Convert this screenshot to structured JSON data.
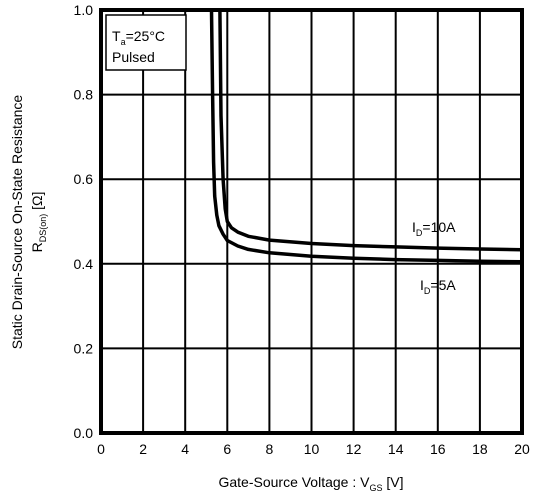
{
  "chart_data": {
    "type": "line",
    "xlabel": {
      "main": "Gate-Source Voltage : V",
      "sub": "GS",
      "unit": " [V]"
    },
    "ylabel": {
      "line1": "Static Drain-Source On-State Resistance",
      "main": "R",
      "sub": "DS(on)",
      "unit": " [Ω]"
    },
    "xlim": [
      0,
      20
    ],
    "ylim": [
      0.0,
      1.0
    ],
    "x_ticks": [
      "0",
      "2",
      "4",
      "6",
      "8",
      "10",
      "12",
      "14",
      "16",
      "18",
      "20"
    ],
    "y_ticks": [
      "0.0",
      "0.2",
      "0.4",
      "0.6",
      "0.8",
      "1.0"
    ],
    "grid": true,
    "conditions": {
      "ta_main": "T",
      "ta_sub": "a",
      "ta_rest": "=25°C",
      "pulsed": "Pulsed"
    },
    "series": [
      {
        "name_main": "I",
        "name_sub": "D",
        "name_rest": "=10A",
        "x": [
          5.65,
          5.7,
          5.8,
          5.9,
          6.0,
          6.2,
          6.5,
          7.0,
          8.0,
          10.0,
          12.0,
          14.0,
          16.0,
          18.0,
          20.0
        ],
        "y": [
          1.0,
          0.75,
          0.6,
          0.53,
          0.5,
          0.485,
          0.475,
          0.465,
          0.456,
          0.448,
          0.443,
          0.44,
          0.437,
          0.435,
          0.433
        ]
      },
      {
        "name_main": "I",
        "name_sub": "D",
        "name_rest": "=5A",
        "x": [
          5.25,
          5.3,
          5.35,
          5.4,
          5.5,
          5.6,
          5.8,
          6.0,
          6.5,
          7.0,
          8.0,
          10.0,
          12.0,
          14.0,
          16.0,
          18.0,
          20.0
        ],
        "y": [
          1.0,
          0.8,
          0.64,
          0.56,
          0.515,
          0.49,
          0.47,
          0.455,
          0.442,
          0.434,
          0.426,
          0.418,
          0.413,
          0.41,
          0.408,
          0.406,
          0.405
        ]
      }
    ]
  }
}
